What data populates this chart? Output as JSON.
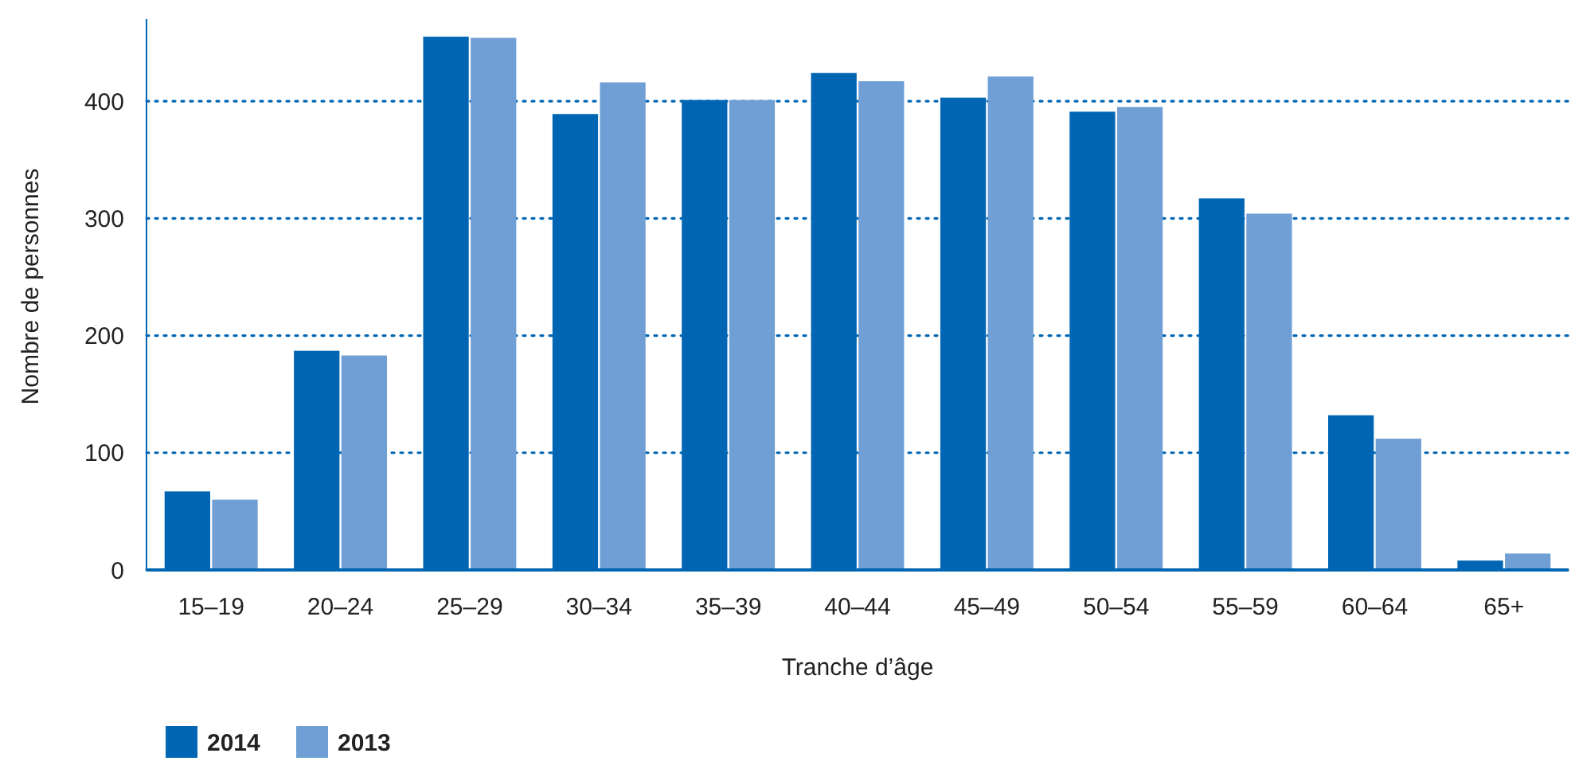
{
  "chart_data": {
    "type": "bar",
    "xlabel": "Tranche d’âge",
    "ylabel": "Nombre de personnes",
    "categories": [
      "15–19",
      "20–24",
      "25–29",
      "30–34",
      "35–39",
      "40–44",
      "45–49",
      "50–54",
      "55–59",
      "60–64",
      "65+"
    ],
    "series": [
      {
        "name": "2014",
        "color": "#0066b3",
        "values": [
          67,
          187,
          455,
          389,
          401,
          424,
          403,
          391,
          317,
          132,
          8
        ]
      },
      {
        "name": "2013",
        "color": "#6f9fd4",
        "values": [
          60,
          183,
          454,
          416,
          401,
          417,
          421,
          395,
          304,
          112,
          14
        ]
      }
    ],
    "ylim": [
      0,
      470
    ],
    "yticks": [
      0,
      100,
      200,
      300,
      400
    ],
    "grid": "y",
    "legend": "bottom left"
  }
}
